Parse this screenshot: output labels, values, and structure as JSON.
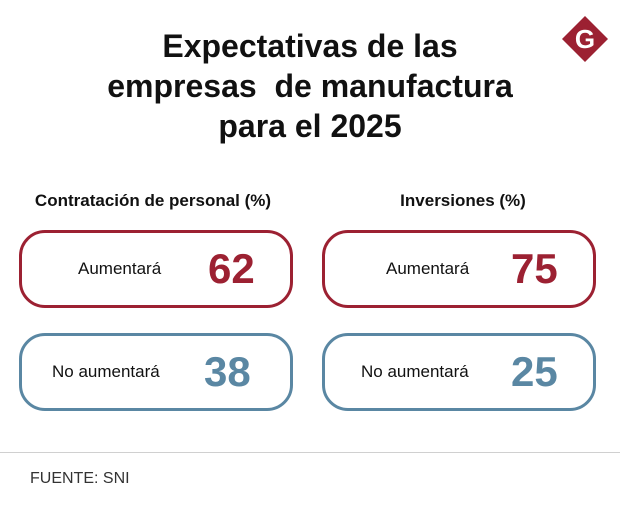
{
  "title_lines": [
    "Expectativas de las",
    "empresas  de manufactura",
    "para el 2025"
  ],
  "logo": {
    "icon": "g-logo-icon",
    "letter": "G",
    "color": "#9c2132"
  },
  "colors": {
    "up": "#9c2132",
    "down": "#5a87a3"
  },
  "chart_data": {
    "type": "table",
    "title": "Expectativas de las empresas de manufactura para el 2025",
    "groups": [
      {
        "heading": "Contratación de personal (%)",
        "items": [
          {
            "label": "Aumentará",
            "value": 62
          },
          {
            "label": "No aumentará",
            "value": 38
          }
        ]
      },
      {
        "heading": "Inversiones (%)",
        "items": [
          {
            "label": "Aumentará",
            "value": 75
          },
          {
            "label": "No aumentará",
            "value": 25
          }
        ]
      }
    ]
  },
  "source": "FUENTE: SNI"
}
